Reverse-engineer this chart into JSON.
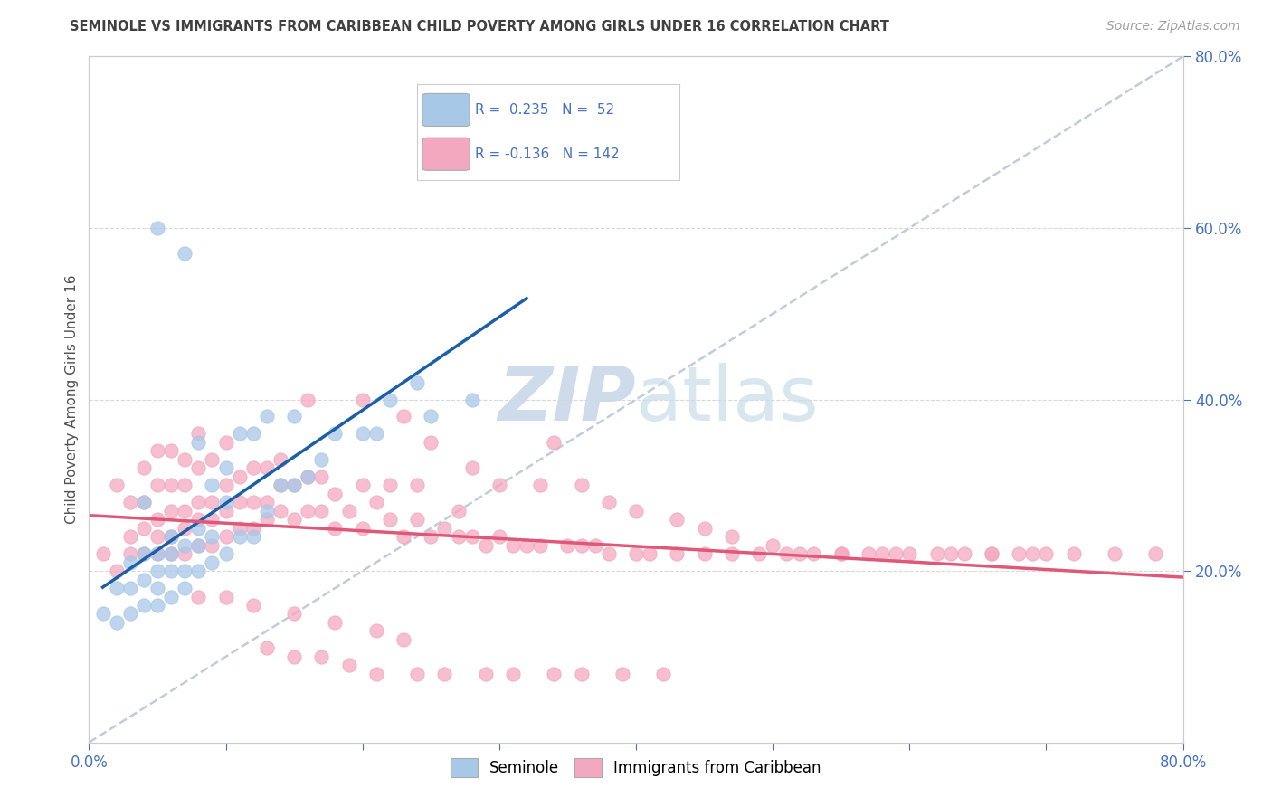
{
  "title": "SEMINOLE VS IMMIGRANTS FROM CARIBBEAN CHILD POVERTY AMONG GIRLS UNDER 16 CORRELATION CHART",
  "source": "Source: ZipAtlas.com",
  "ylabel": "Child Poverty Among Girls Under 16",
  "xlim": [
    0,
    0.8
  ],
  "ylim": [
    0,
    0.8
  ],
  "blue_R": 0.235,
  "blue_N": 52,
  "pink_R": -0.136,
  "pink_N": 142,
  "blue_color": "#a8c8e8",
  "pink_color": "#f4a8c0",
  "blue_line_color": "#1a5fa8",
  "pink_line_color": "#e05878",
  "ref_line_color": "#b8c8d8",
  "background_color": "#ffffff",
  "grid_color": "#d8d8d8",
  "legend_label_blue": "Seminole",
  "legend_label_pink": "Immigrants from Caribbean",
  "blue_text_color": "#4472c4",
  "title_color": "#404040",
  "source_color": "#a0a0a0",
  "blue_scatter_x": [
    0.01,
    0.02,
    0.02,
    0.03,
    0.03,
    0.03,
    0.04,
    0.04,
    0.04,
    0.04,
    0.05,
    0.05,
    0.05,
    0.05,
    0.05,
    0.06,
    0.06,
    0.06,
    0.06,
    0.07,
    0.07,
    0.07,
    0.07,
    0.08,
    0.08,
    0.08,
    0.08,
    0.09,
    0.09,
    0.09,
    0.1,
    0.1,
    0.1,
    0.11,
    0.11,
    0.12,
    0.12,
    0.13,
    0.13,
    0.14,
    0.15,
    0.15,
    0.16,
    0.17,
    0.18,
    0.2,
    0.21,
    0.22,
    0.24,
    0.25,
    0.28,
    0.32
  ],
  "blue_scatter_y": [
    0.15,
    0.14,
    0.18,
    0.15,
    0.18,
    0.21,
    0.16,
    0.19,
    0.22,
    0.28,
    0.16,
    0.18,
    0.2,
    0.22,
    0.6,
    0.17,
    0.2,
    0.22,
    0.24,
    0.18,
    0.2,
    0.23,
    0.57,
    0.2,
    0.23,
    0.25,
    0.35,
    0.21,
    0.24,
    0.3,
    0.22,
    0.28,
    0.32,
    0.24,
    0.36,
    0.24,
    0.36,
    0.27,
    0.38,
    0.3,
    0.3,
    0.38,
    0.31,
    0.33,
    0.36,
    0.36,
    0.36,
    0.4,
    0.42,
    0.38,
    0.4,
    0.68
  ],
  "pink_scatter_x": [
    0.01,
    0.02,
    0.02,
    0.03,
    0.03,
    0.03,
    0.04,
    0.04,
    0.04,
    0.04,
    0.05,
    0.05,
    0.05,
    0.05,
    0.05,
    0.06,
    0.06,
    0.06,
    0.06,
    0.06,
    0.07,
    0.07,
    0.07,
    0.07,
    0.07,
    0.08,
    0.08,
    0.08,
    0.08,
    0.08,
    0.09,
    0.09,
    0.09,
    0.09,
    0.1,
    0.1,
    0.1,
    0.1,
    0.11,
    0.11,
    0.11,
    0.12,
    0.12,
    0.12,
    0.13,
    0.13,
    0.13,
    0.14,
    0.14,
    0.14,
    0.15,
    0.15,
    0.16,
    0.16,
    0.17,
    0.17,
    0.18,
    0.18,
    0.19,
    0.2,
    0.2,
    0.21,
    0.22,
    0.22,
    0.23,
    0.24,
    0.24,
    0.25,
    0.26,
    0.27,
    0.27,
    0.28,
    0.29,
    0.3,
    0.31,
    0.32,
    0.33,
    0.35,
    0.36,
    0.37,
    0.38,
    0.4,
    0.41,
    0.43,
    0.45,
    0.47,
    0.49,
    0.51,
    0.53,
    0.55,
    0.57,
    0.59,
    0.62,
    0.64,
    0.66,
    0.68,
    0.7,
    0.72,
    0.75,
    0.78,
    0.16,
    0.2,
    0.23,
    0.25,
    0.28,
    0.3,
    0.33,
    0.34,
    0.36,
    0.38,
    0.4,
    0.43,
    0.45,
    0.47,
    0.5,
    0.52,
    0.55,
    0.58,
    0.6,
    0.63,
    0.66,
    0.69,
    0.08,
    0.1,
    0.12,
    0.15,
    0.18,
    0.21,
    0.23,
    0.13,
    0.15,
    0.17,
    0.19,
    0.21,
    0.24,
    0.26,
    0.29,
    0.31,
    0.34,
    0.36,
    0.39,
    0.42
  ],
  "pink_scatter_y": [
    0.22,
    0.2,
    0.3,
    0.22,
    0.24,
    0.28,
    0.22,
    0.25,
    0.28,
    0.32,
    0.22,
    0.24,
    0.26,
    0.3,
    0.34,
    0.22,
    0.24,
    0.27,
    0.3,
    0.34,
    0.22,
    0.25,
    0.27,
    0.3,
    0.33,
    0.23,
    0.26,
    0.28,
    0.32,
    0.36,
    0.23,
    0.26,
    0.28,
    0.33,
    0.24,
    0.27,
    0.3,
    0.35,
    0.25,
    0.28,
    0.31,
    0.25,
    0.28,
    0.32,
    0.26,
    0.28,
    0.32,
    0.27,
    0.3,
    0.33,
    0.26,
    0.3,
    0.27,
    0.31,
    0.27,
    0.31,
    0.25,
    0.29,
    0.27,
    0.25,
    0.3,
    0.28,
    0.26,
    0.3,
    0.24,
    0.26,
    0.3,
    0.24,
    0.25,
    0.24,
    0.27,
    0.24,
    0.23,
    0.24,
    0.23,
    0.23,
    0.23,
    0.23,
    0.23,
    0.23,
    0.22,
    0.22,
    0.22,
    0.22,
    0.22,
    0.22,
    0.22,
    0.22,
    0.22,
    0.22,
    0.22,
    0.22,
    0.22,
    0.22,
    0.22,
    0.22,
    0.22,
    0.22,
    0.22,
    0.22,
    0.4,
    0.4,
    0.38,
    0.35,
    0.32,
    0.3,
    0.3,
    0.35,
    0.3,
    0.28,
    0.27,
    0.26,
    0.25,
    0.24,
    0.23,
    0.22,
    0.22,
    0.22,
    0.22,
    0.22,
    0.22,
    0.22,
    0.17,
    0.17,
    0.16,
    0.15,
    0.14,
    0.13,
    0.12,
    0.11,
    0.1,
    0.1,
    0.09,
    0.08,
    0.08,
    0.08,
    0.08,
    0.08,
    0.08,
    0.08,
    0.08,
    0.08
  ]
}
